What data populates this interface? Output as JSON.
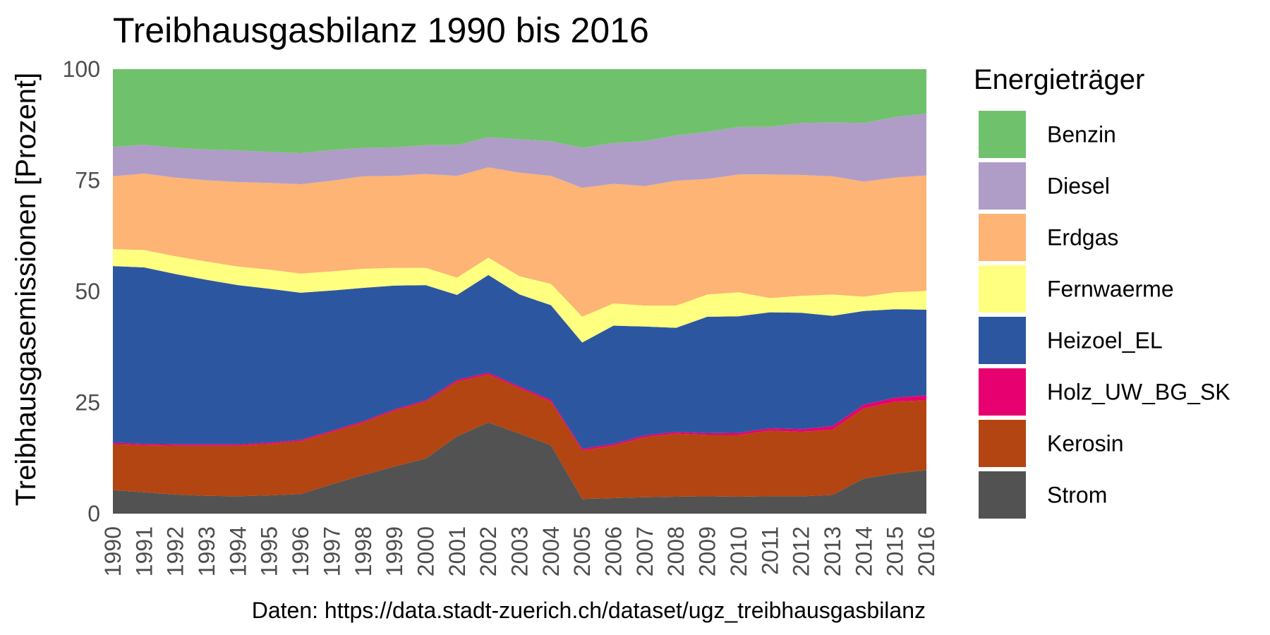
{
  "chart_data": {
    "type": "area",
    "stacked": true,
    "normalized_percent": true,
    "title": "Treibhausgasbilanz 1990 bis 2016",
    "xlabel": "",
    "ylabel": "Treibhausgasemissionen [Prozent]",
    "caption": "Daten: https://data.stadt-zuerich.ch/dataset/ugz_treibhausgasbilanz",
    "legend_title": "Energieträger",
    "legend_position": "right",
    "grid": false,
    "ylim": [
      0,
      100
    ],
    "yticks": [
      0,
      25,
      50,
      75,
      100
    ],
    "x": [
      1990,
      1991,
      1992,
      1993,
      1994,
      1995,
      1996,
      1997,
      1998,
      1999,
      2000,
      2001,
      2002,
      2003,
      2004,
      2005,
      2006,
      2007,
      2008,
      2009,
      2010,
      2011,
      2012,
      2013,
      2014,
      2015,
      2016
    ],
    "stack_order_bottom_to_top": [
      "Strom",
      "Kerosin",
      "Holz_UW_BG_SK",
      "Heizoel_EL",
      "Fernwaerme",
      "Erdgas",
      "Diesel",
      "Benzin"
    ],
    "legend_order": [
      "Benzin",
      "Diesel",
      "Erdgas",
      "Fernwaerme",
      "Heizoel_EL",
      "Holz_UW_BG_SK",
      "Kerosin",
      "Strom"
    ],
    "series": [
      {
        "name": "Strom",
        "color": "#525252",
        "values": [
          5.3,
          4.8,
          4.3,
          4.0,
          3.9,
          4.1,
          4.4,
          6.6,
          8.7,
          10.6,
          12.4,
          17.4,
          20.5,
          18.0,
          15.4,
          3.3,
          3.5,
          3.7,
          3.8,
          3.9,
          3.8,
          3.9,
          3.9,
          4.2,
          7.9,
          9.0,
          9.8
        ]
      },
      {
        "name": "Kerosin",
        "color": "#b24512",
        "values": [
          10.3,
          10.6,
          11.0,
          11.3,
          11.4,
          11.6,
          11.9,
          11.8,
          11.8,
          12.6,
          12.8,
          12.3,
          10.8,
          10.2,
          9.8,
          10.9,
          11.8,
          13.5,
          14.2,
          13.8,
          13.9,
          14.8,
          14.5,
          14.7,
          15.8,
          16.2,
          15.7
        ]
      },
      {
        "name": "Holz_UW_BG_SK",
        "color": "#e7006f",
        "values": [
          0.4,
          0.3,
          0.3,
          0.3,
          0.3,
          0.3,
          0.3,
          0.3,
          0.3,
          0.3,
          0.3,
          0.4,
          0.4,
          0.4,
          0.4,
          0.4,
          0.4,
          0.4,
          0.4,
          0.4,
          0.5,
          0.5,
          0.6,
          0.8,
          0.8,
          0.9,
          1.1
        ]
      },
      {
        "name": "Heizoel_EL",
        "color": "#2c57a0",
        "values": [
          39.7,
          39.7,
          38.3,
          37.0,
          35.8,
          34.6,
          33.1,
          31.5,
          30.0,
          27.8,
          25.9,
          19.1,
          22.0,
          20.7,
          21.3,
          23.9,
          26.6,
          24.5,
          23.4,
          26.2,
          26.2,
          26.1,
          26.2,
          24.8,
          21.1,
          19.9,
          19.3
        ]
      },
      {
        "name": "Fernwaerme",
        "color": "#ffff80",
        "values": [
          3.8,
          3.9,
          4.0,
          4.1,
          4.2,
          4.3,
          4.3,
          4.3,
          4.3,
          4.0,
          3.9,
          3.9,
          3.9,
          4.1,
          4.8,
          5.8,
          5.0,
          4.7,
          5.0,
          5.0,
          5.4,
          3.2,
          3.8,
          4.8,
          3.2,
          3.8,
          4.2
        ]
      },
      {
        "name": "Erdgas",
        "color": "#fdb474",
        "values": [
          16.4,
          17.2,
          17.7,
          18.3,
          19.0,
          19.5,
          20.1,
          20.4,
          20.8,
          20.7,
          21.1,
          22.9,
          20.3,
          23.3,
          24.3,
          29.0,
          26.9,
          26.9,
          28.1,
          26.0,
          26.5,
          27.8,
          27.2,
          26.6,
          25.9,
          25.8,
          26.0
        ]
      },
      {
        "name": "Diesel",
        "color": "#af9dc8",
        "values": [
          6.6,
          6.5,
          6.7,
          6.9,
          7.1,
          7.0,
          7.0,
          6.9,
          6.4,
          6.4,
          6.5,
          6.9,
          6.8,
          7.5,
          7.8,
          9.0,
          9.2,
          10.1,
          10.2,
          10.6,
          10.7,
          10.7,
          11.7,
          12.1,
          13.2,
          13.6,
          13.9
        ]
      },
      {
        "name": "Benzin",
        "color": "#70c16c",
        "values": [
          17.5,
          17.0,
          17.7,
          18.1,
          18.3,
          18.6,
          18.9,
          18.2,
          17.7,
          17.6,
          17.1,
          17.1,
          15.3,
          15.8,
          16.2,
          17.7,
          16.6,
          16.2,
          14.9,
          14.1,
          13.0,
          13.0,
          12.1,
          12.0,
          12.1,
          10.8,
          10.0
        ]
      }
    ]
  }
}
